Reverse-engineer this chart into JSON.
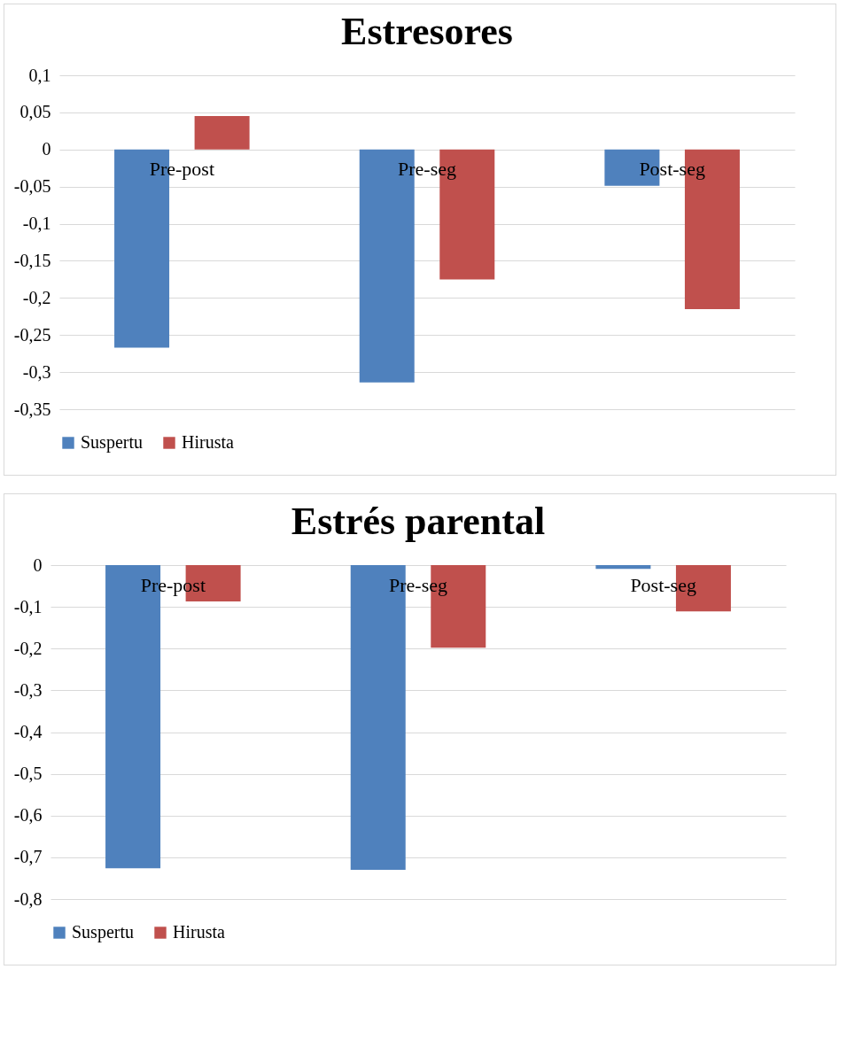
{
  "chart_data": [
    {
      "type": "bar",
      "title": "Estresores",
      "categories": [
        "Pre-post",
        "Pre-seg",
        "Post-seg"
      ],
      "series": [
        {
          "name": "Suspertu",
          "color": "#4f81bd",
          "values": [
            -0.267,
            -0.314,
            -0.049
          ]
        },
        {
          "name": "Hirusta",
          "color": "#c0504d",
          "values": [
            0.045,
            -0.175,
            -0.215
          ]
        }
      ],
      "ylim": [
        -0.35,
        0.1
      ],
      "yticks": [
        {
          "value": -0.35,
          "label": "-0,35"
        },
        {
          "value": -0.3,
          "label": "-0,3"
        },
        {
          "value": -0.25,
          "label": "-0,25"
        },
        {
          "value": -0.2,
          "label": "-0,2"
        },
        {
          "value": -0.15,
          "label": "-0,15"
        },
        {
          "value": -0.1,
          "label": "-0,1"
        },
        {
          "value": -0.05,
          "label": "-0,05"
        },
        0,
        {
          "value": 0.05,
          "label": "0,05"
        },
        {
          "value": 0.1,
          "label": "0,1"
        }
      ],
      "grid": "y",
      "legend": "bottom"
    },
    {
      "type": "bar",
      "title": "Estrés parental",
      "categories": [
        "Pre-post",
        "Pre-seg",
        "Post-seg"
      ],
      "series": [
        {
          "name": "Suspertu",
          "color": "#4f81bd",
          "values": [
            -0.726,
            -0.73,
            -0.009
          ]
        },
        {
          "name": "Hirusta",
          "color": "#c0504d",
          "values": [
            -0.087,
            -0.198,
            -0.111
          ]
        }
      ],
      "ylim": [
        -0.8,
        0
      ],
      "yticks": [
        {
          "value": -0.8,
          "label": "-0,8"
        },
        {
          "value": -0.7,
          "label": "-0,7"
        },
        {
          "value": -0.6,
          "label": "-0,6"
        },
        {
          "value": -0.5,
          "label": "-0,5"
        },
        {
          "value": -0.4,
          "label": "-0,4"
        },
        {
          "value": -0.3,
          "label": "-0,3"
        },
        {
          "value": -0.2,
          "label": "-0,2"
        },
        {
          "value": -0.1,
          "label": "-0,1"
        },
        0
      ],
      "grid": "y",
      "legend": "bottom"
    }
  ]
}
